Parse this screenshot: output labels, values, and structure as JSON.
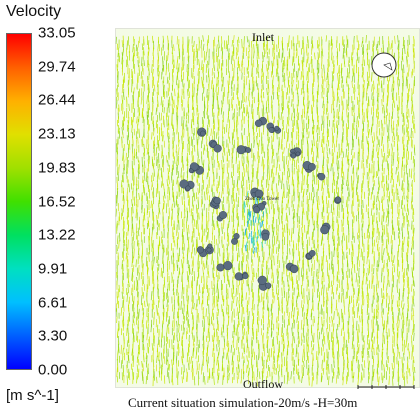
{
  "legend": {
    "title": "Velocity",
    "unit": "[m s^-1]",
    "ticks": [
      "33.05",
      "29.74",
      "26.44",
      "23.13",
      "19.83",
      "16.52",
      "13.22",
      "9.91",
      "6.61",
      "3.30",
      "0.00"
    ],
    "colors": [
      "#0000ff",
      "#0060ff",
      "#00c0ff",
      "#00e0c0",
      "#00e060",
      "#40e000",
      "#a0e000",
      "#e0e000",
      "#ffb000",
      "#ff6000",
      "#ff0000"
    ]
  },
  "field": {
    "inlet_label": "Inlet",
    "outflow_label": "Outflow",
    "tower_label": "Zhen Guo Tower",
    "dominant_vector_color": "#b4e60a"
  },
  "caption": "Current situation simulation-20m/s -H=30m",
  "icons": {
    "north_arrow": "north-arrow-icon",
    "scale_bar": "scale-bar-icon"
  }
}
